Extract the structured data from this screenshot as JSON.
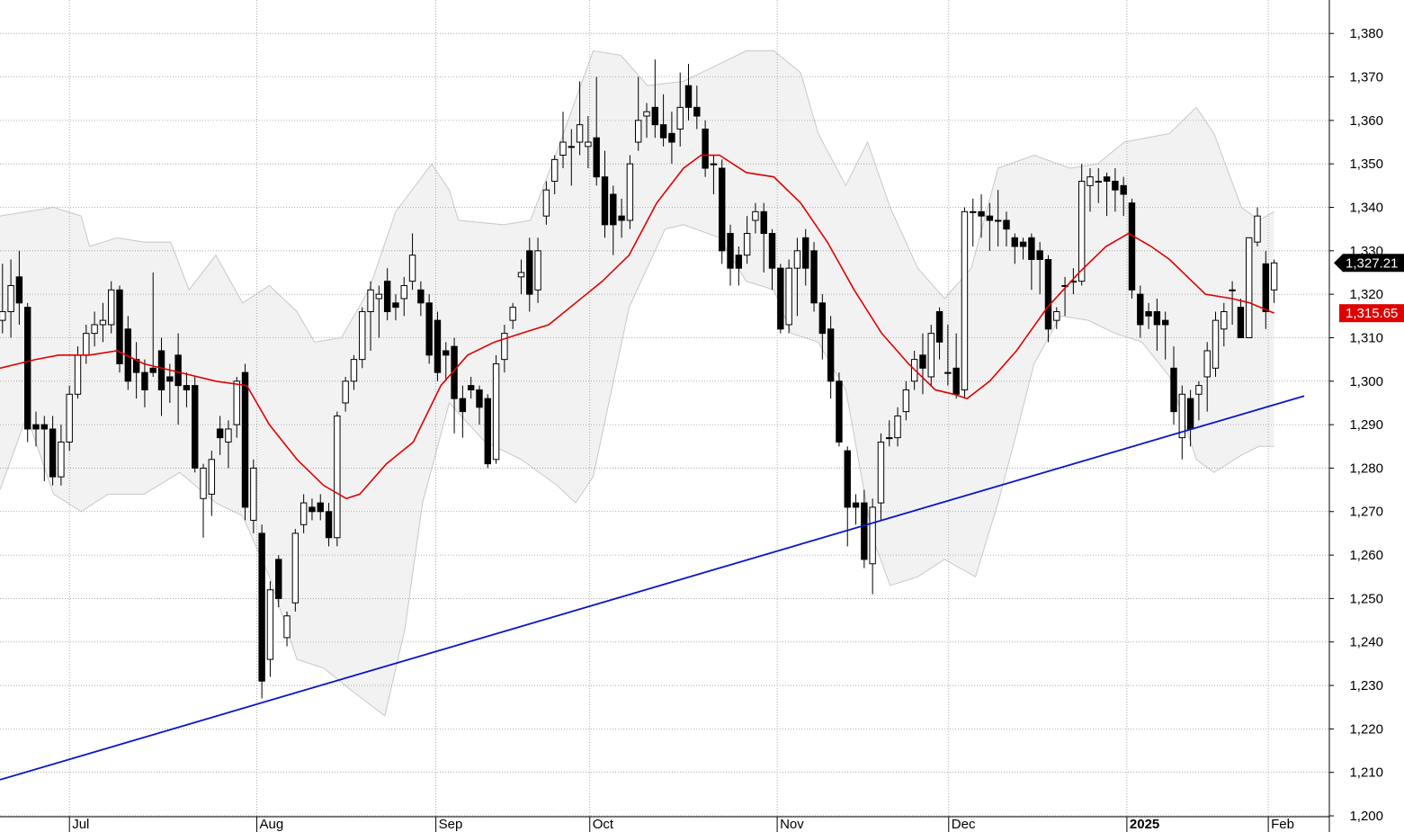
{
  "chart_data": {
    "type": "candlestick",
    "x": [
      0,
      1,
      2,
      3,
      4,
      5,
      6,
      7,
      8,
      9,
      10,
      11,
      12,
      13,
      14,
      15,
      16,
      17,
      18,
      19,
      20,
      21,
      22,
      23,
      24,
      25,
      26,
      27,
      28,
      29,
      30,
      31,
      32,
      33,
      34,
      35,
      36,
      37,
      38,
      39,
      40,
      41,
      42,
      43,
      44,
      45,
      46,
      47,
      48,
      49,
      50,
      51,
      52,
      53,
      54,
      55,
      56,
      57,
      58,
      59,
      60,
      61,
      62,
      63,
      64,
      65,
      66,
      67,
      68,
      69,
      70,
      71,
      72,
      73,
      74,
      75,
      76,
      77,
      78,
      79,
      80,
      81,
      82,
      83,
      84,
      85,
      86,
      87,
      88,
      89,
      90,
      91,
      92,
      93,
      94,
      95,
      96,
      97,
      98,
      99,
      100,
      101,
      102,
      103,
      104,
      105,
      106,
      107,
      108,
      109,
      110,
      111,
      112,
      113,
      114,
      115,
      116,
      117,
      118,
      119,
      120,
      121,
      122,
      123,
      124,
      125,
      126,
      127,
      128,
      129,
      130,
      131,
      132,
      133,
      134,
      135,
      136,
      137,
      138,
      139,
      140,
      141,
      142,
      143,
      144,
      145,
      146,
      147,
      148,
      149,
      150,
      151,
      152
    ],
    "open": [
      1314,
      1316,
      1324,
      1317,
      1290,
      1290,
      1289,
      1278,
      1286,
      1297,
      1306,
      1311,
      1313,
      1313,
      1321,
      1312,
      1305,
      1302,
      1303,
      1307,
      1301,
      1306,
      1299,
      1299,
      1273,
      1274,
      1289,
      1286,
      1290,
      1302,
      1268,
      1265,
      1236,
      1259,
      1241,
      1249,
      1267,
      1271,
      1272,
      1270,
      1264,
      1295,
      1300,
      1305,
      1316,
      1319,
      1323,
      1318,
      1319,
      1323,
      1321,
      1318,
      1314,
      1307,
      1308,
      1296,
      1299,
      1298,
      1296,
      1282,
      1305,
      1314,
      1324,
      1330,
      1321,
      1338,
      1346,
      1352,
      1354,
      1355,
      1354,
      1356,
      1347,
      1343,
      1338,
      1337,
      1355,
      1361,
      1363,
      1359,
      1357,
      1358,
      1368,
      1363,
      1358,
      1350,
      1349,
      1334,
      1329,
      1329,
      1337,
      1339,
      1334,
      1326,
      1313,
      1326,
      1333,
      1330,
      1318,
      1312,
      1300,
      1284,
      1272,
      1272,
      1258,
      1272,
      1287,
      1287,
      1293,
      1300,
      1306,
      1301,
      1316,
      1302,
      1303,
      1298,
      1339,
      1339,
      1338,
      1337,
      1337,
      1333,
      1332,
      1333,
      1330,
      1328,
      1314,
      1322,
      1323,
      1323,
      1345,
      1346,
      1347,
      1346,
      1345,
      1341,
      1320,
      1316,
      1316,
      1314,
      1303,
      1287,
      1296,
      1297,
      1301,
      1303,
      1312,
      1321,
      1317,
      1310,
      1332,
      1327,
      1321
    ],
    "high": [
      1327,
      1328,
      1330,
      1318,
      1293,
      1292,
      1292,
      1290,
      1299,
      1308,
      1313,
      1316,
      1318,
      1323,
      1322,
      1315,
      1309,
      1305,
      1325,
      1310,
      1304,
      1311,
      1302,
      1301,
      1281,
      1284,
      1292,
      1291,
      1301,
      1304,
      1282,
      1267,
      1254,
      1260,
      1247,
      1266,
      1274,
      1273,
      1274,
      1272,
      1293,
      1301,
      1306,
      1317,
      1323,
      1322,
      1326,
      1320,
      1324,
      1334,
      1323,
      1320,
      1316,
      1309,
      1310,
      1299,
      1301,
      1299,
      1297,
      1306,
      1313,
      1318,
      1328,
      1333,
      1333,
      1346,
      1352,
      1362,
      1358,
      1369,
      1361,
      1370,
      1353,
      1345,
      1342,
      1352,
      1370,
      1364,
      1374,
      1366,
      1362,
      1371,
      1373,
      1368,
      1360,
      1352,
      1351,
      1336,
      1331,
      1338,
      1341,
      1341,
      1335,
      1327,
      1328,
      1333,
      1335,
      1332,
      1320,
      1315,
      1302,
      1285,
      1274,
      1275,
      1273,
      1288,
      1291,
      1294,
      1300,
      1307,
      1311,
      1313,
      1317,
      1313,
      1311,
      1340,
      1342,
      1343,
      1341,
      1344,
      1339,
      1334,
      1333,
      1334,
      1332,
      1329,
      1317,
      1324,
      1326,
      1350,
      1349,
      1349,
      1348,
      1349,
      1347,
      1342,
      1322,
      1318,
      1319,
      1316,
      1308,
      1299,
      1298,
      1300,
      1309,
      1316,
      1318,
      1323,
      1319,
      1333,
      1340,
      1330,
      1328
    ],
    "low": [
      1311,
      1310,
      1313,
      1286,
      1285,
      1277,
      1276,
      1276,
      1284,
      1296,
      1304,
      1308,
      1309,
      1311,
      1302,
      1298,
      1296,
      1294,
      1301,
      1292,
      1295,
      1290,
      1294,
      1279,
      1264,
      1269,
      1283,
      1280,
      1287,
      1268,
      1265,
      1227,
      1232,
      1248,
      1239,
      1247,
      1265,
      1268,
      1268,
      1262,
      1262,
      1293,
      1298,
      1303,
      1307,
      1310,
      1314,
      1314,
      1315,
      1321,
      1315,
      1304,
      1300,
      1300,
      1288,
      1287,
      1296,
      1290,
      1280,
      1281,
      1302,
      1312,
      1320,
      1316,
      1318,
      1336,
      1343,
      1349,
      1345,
      1352,
      1349,
      1345,
      1333,
      1329,
      1333,
      1335,
      1353,
      1356,
      1356,
      1354,
      1350,
      1354,
      1360,
      1358,
      1347,
      1343,
      1327,
      1322,
      1322,
      1327,
      1334,
      1325,
      1321,
      1311,
      1311,
      1315,
      1322,
      1316,
      1305,
      1296,
      1285,
      1262,
      1267,
      1257,
      1251,
      1268,
      1285,
      1285,
      1291,
      1298,
      1297,
      1299,
      1305,
      1299,
      1296,
      1296,
      1331,
      1333,
      1330,
      1331,
      1331,
      1327,
      1328,
      1321,
      1320,
      1309,
      1312,
      1315,
      1320,
      1322,
      1339,
      1341,
      1338,
      1339,
      1338,
      1319,
      1310,
      1312,
      1307,
      1305,
      1290,
      1282,
      1285,
      1291,
      1293,
      1301,
      1308,
      1313,
      1310,
      1310,
      1331,
      1312,
      1318
    ],
    "close": [
      1316,
      1322,
      1318,
      1289,
      1289,
      1289,
      1278,
      1286,
      1297,
      1306,
      1311,
      1313,
      1314,
      1321,
      1304,
      1300,
      1302,
      1298,
      1302,
      1298,
      1300,
      1299,
      1298,
      1280,
      1280,
      1282,
      1287,
      1289,
      1300,
      1271,
      1280,
      1231,
      1252,
      1250,
      1246,
      1265,
      1272,
      1270,
      1270,
      1264,
      1292,
      1300,
      1305,
      1316,
      1321,
      1320,
      1316,
      1317,
      1322,
      1329,
      1318,
      1306,
      1302,
      1306,
      1296,
      1293,
      1298,
      1294,
      1281,
      1304,
      1311,
      1317,
      1325,
      1320,
      1330,
      1344,
      1351,
      1355,
      1354,
      1359,
      1355,
      1347,
      1336,
      1336,
      1337,
      1350,
      1360,
      1362,
      1359,
      1356,
      1355,
      1363,
      1363,
      1361,
      1349,
      1350,
      1330,
      1326,
      1326,
      1334,
      1339,
      1334,
      1326,
      1312,
      1326,
      1330,
      1326,
      1318,
      1311,
      1300,
      1286,
      1271,
      1271,
      1259,
      1271,
      1286,
      1287,
      1292,
      1298,
      1305,
      1303,
      1311,
      1309,
      1302,
      1297,
      1339,
      1339,
      1338,
      1337,
      1337,
      1335,
      1331,
      1331,
      1328,
      1328,
      1312,
      1316,
      1322,
      1323,
      1346,
      1347,
      1346,
      1346,
      1344,
      1343,
      1321,
      1313,
      1315,
      1313,
      1313,
      1293,
      1297,
      1289,
      1299,
      1307,
      1314,
      1316,
      1321,
      1310,
      1333,
      1338,
      1316,
      1327.21
    ],
    "up_color": "#ffffff",
    "down_color": "#000000",
    "band": {
      "color": "#f2f2f2",
      "x_upper": [
        -0.3,
        2.9,
        6.1,
        9.4,
        10.4,
        13.7,
        16.9,
        20.1,
        22.3,
        25.5,
        28.7,
        31.9,
        35.2,
        37.3,
        40.5,
        43.8,
        47.0,
        51.3,
        53.4,
        54.5,
        59.9,
        63.1,
        66.3,
        70.6,
        73.9,
        77.1,
        81.4,
        85.7,
        88.9,
        92.2,
        95.4,
        97.5,
        100.8,
        103.4,
        106.1,
        109.4,
        112.6,
        115.8,
        119.0,
        123.3,
        127.6,
        130.9,
        134.1,
        139.5,
        142.7,
        144.8,
        148.1,
        150.2,
        152
      ],
      "upper": [
        1338,
        1339,
        1340,
        1338,
        1331,
        1333,
        1332,
        1332,
        1321,
        1329,
        1318,
        1322,
        1316,
        1309,
        1310,
        1321,
        1339,
        1350,
        1344,
        1337,
        1336,
        1337,
        1353,
        1376,
        1375,
        1368,
        1369,
        1373,
        1376,
        1376,
        1371,
        1357,
        1345,
        1355,
        1340,
        1326,
        1319,
        1326,
        1349,
        1352,
        1349,
        1350,
        1355,
        1357,
        1363,
        1357,
        1340,
        1337,
        1339
      ],
      "x_lower": [
        -0.3,
        2.9,
        6.1,
        9.4,
        12.6,
        16.9,
        21.2,
        25.5,
        28.7,
        31.9,
        35.2,
        38.4,
        41.6,
        45.7,
        48.1,
        50.2,
        53.4,
        57.7,
        62.0,
        66.3,
        68.5,
        70.6,
        74.9,
        79.2,
        81.4,
        85.7,
        88.9,
        92.2,
        94.3,
        97.5,
        100.8,
        104.0,
        106.1,
        109.4,
        112.6,
        116.3,
        119.0,
        121.2,
        123.3,
        126.5,
        129.8,
        133.0,
        136.2,
        139.5,
        142.7,
        144.8,
        148.1,
        150.2,
        152
      ],
      "lower": [
        1275,
        1292,
        1274,
        1270,
        1274,
        1274,
        1279,
        1272,
        1269,
        1255,
        1236,
        1234,
        1229,
        1223,
        1243,
        1272,
        1295,
        1286,
        1282,
        1276,
        1272,
        1278,
        1317,
        1335,
        1336,
        1333,
        1323,
        1321,
        1311,
        1309,
        1298,
        1264,
        1253,
        1255,
        1259,
        1255,
        1272,
        1288,
        1304,
        1315,
        1314,
        1311,
        1309,
        1301,
        1282,
        1279,
        1283,
        1285,
        1285
      ]
    },
    "lines": [
      {
        "color": "#e00000",
        "x": [
          -0.3,
          4.0,
          6.7,
          10.4,
          13.7,
          16.9,
          21.2,
          25.5,
          29.2,
          31.9,
          35.2,
          38.4,
          41.1,
          42.7,
          45.9,
          49.1,
          52.4,
          55.6,
          58.8,
          62.0,
          65.3,
          68.5,
          71.7,
          74.9,
          78.2,
          81.4,
          83.5,
          85.7,
          88.9,
          92.2,
          95.4,
          98.6,
          101.8,
          105.1,
          108.3,
          111.5,
          113.7,
          115.3,
          118.0,
          121.2,
          124.9,
          128.7,
          131.9,
          134.6,
          137.3,
          139.5,
          143.8,
          147.0,
          149.1,
          152
        ],
        "values": [
          1303,
          1305,
          1306,
          1306,
          1307,
          1304,
          1302,
          1300,
          1299,
          1290,
          1282,
          1276,
          1273,
          1274,
          1281,
          1286,
          1299,
          1306,
          1309,
          1311,
          1313,
          1318,
          1323,
          1329,
          1341,
          1349,
          1352,
          1352,
          1348,
          1347,
          1341,
          1332,
          1321,
          1311,
          1304,
          1298,
          1297,
          1296,
          1300,
          1307,
          1317,
          1325,
          1331,
          1334,
          1331,
          1328,
          1320,
          1319,
          1318,
          1315.65
        ]
      },
      {
        "color": "#0a14c8",
        "x": [
          -0.3,
          155.6
        ],
        "values": [
          1208.3,
          1296.6
        ]
      }
    ],
    "price_labels": [
      {
        "value": 1327.21,
        "label": "1,327.21",
        "color": "#000000"
      },
      {
        "value": 1315.65,
        "label": "1,315.65",
        "color": "#e00000"
      }
    ],
    "xlim": [
      -0.3,
      158.6
    ],
    "xticks": [
      {
        "value": 8.0,
        "label": "Jul"
      },
      {
        "value": 30.4,
        "label": "Aug"
      },
      {
        "value": 51.8,
        "label": "Sep"
      },
      {
        "value": 70.2,
        "label": "Oct"
      },
      {
        "value": 92.6,
        "label": "Nov"
      },
      {
        "value": 113.1,
        "label": "Dec"
      },
      {
        "value": 134.4,
        "label": "2025"
      },
      {
        "value": 151.3,
        "label": "Feb"
      }
    ],
    "ylim": [
      1199.8,
      1387.7
    ],
    "yticks": [
      {
        "value": 1200,
        "label": "1,200"
      },
      {
        "value": 1210,
        "label": "1,210"
      },
      {
        "value": 1220,
        "label": "1,220"
      },
      {
        "value": 1230,
        "label": "1,230"
      },
      {
        "value": 1240,
        "label": "1,240"
      },
      {
        "value": 1250,
        "label": "1,250"
      },
      {
        "value": 1260,
        "label": "1,260"
      },
      {
        "value": 1270,
        "label": "1,270"
      },
      {
        "value": 1280,
        "label": "1,280"
      },
      {
        "value": 1290,
        "label": "1,290"
      },
      {
        "value": 1300,
        "label": "1,300"
      },
      {
        "value": 1310,
        "label": "1,310"
      },
      {
        "value": 1320,
        "label": "1,320"
      },
      {
        "value": 1330,
        "label": "1,330"
      },
      {
        "value": 1340,
        "label": "1,340"
      },
      {
        "value": 1350,
        "label": "1,350"
      },
      {
        "value": 1360,
        "label": "1,360"
      },
      {
        "value": 1370,
        "label": "1,370"
      },
      {
        "value": 1380,
        "label": "1,380"
      }
    ],
    "grid": true
  }
}
